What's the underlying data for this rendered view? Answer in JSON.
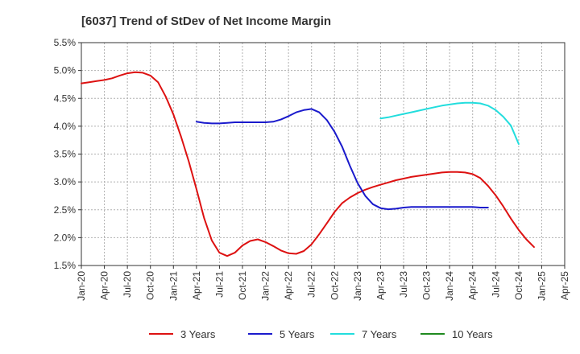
{
  "chart_data": {
    "type": "line",
    "title": "[6037]  Trend of StDev of Net Income Margin",
    "xlabel": "",
    "ylabel": "",
    "x_ticks": [
      "Jan-20",
      "Apr-20",
      "Jul-20",
      "Oct-20",
      "Jan-21",
      "Apr-21",
      "Jul-21",
      "Oct-21",
      "Jan-22",
      "Apr-22",
      "Jul-22",
      "Oct-22",
      "Jan-23",
      "Apr-23",
      "Jul-23",
      "Oct-23",
      "Jan-24",
      "Apr-24",
      "Jul-24",
      "Oct-24",
      "Jan-25",
      "Apr-25"
    ],
    "y_ticks": [
      "5.5%",
      "5.0%",
      "4.5%",
      "4.0%",
      "3.5%",
      "3.0%",
      "2.5%",
      "2.0%",
      "1.5%"
    ],
    "ylim": [
      1.5,
      5.5
    ],
    "grid": true,
    "legend_position": "bottom",
    "series": [
      {
        "name": "3 Years",
        "color": "#dd1111",
        "start_index": 0,
        "values": [
          4.77,
          4.79,
          4.81,
          4.83,
          4.86,
          4.91,
          4.95,
          4.97,
          4.96,
          4.91,
          4.79,
          4.53,
          4.21,
          3.81,
          3.37,
          2.87,
          2.35,
          1.95,
          1.73,
          1.67,
          1.73,
          1.86,
          1.94,
          1.97,
          1.92,
          1.85,
          1.77,
          1.72,
          1.71,
          1.76,
          1.88,
          2.06,
          2.26,
          2.46,
          2.62,
          2.72,
          2.8,
          2.86,
          2.91,
          2.95,
          2.99,
          3.03,
          3.06,
          3.09,
          3.11,
          3.13,
          3.15,
          3.17,
          3.18,
          3.18,
          3.17,
          3.14,
          3.07,
          2.93,
          2.76,
          2.56,
          2.34,
          2.14,
          1.97,
          1.83
        ]
      },
      {
        "name": "5 Years",
        "color": "#1a1acc",
        "start_index": 15,
        "values": [
          4.08,
          4.06,
          4.05,
          4.05,
          4.06,
          4.07,
          4.07,
          4.07,
          4.07,
          4.07,
          4.08,
          4.12,
          4.18,
          4.25,
          4.29,
          4.31,
          4.25,
          4.11,
          3.9,
          3.63,
          3.29,
          2.98,
          2.75,
          2.6,
          2.53,
          2.51,
          2.52,
          2.54,
          2.55,
          2.55,
          2.55,
          2.55,
          2.55,
          2.55,
          2.55,
          2.55,
          2.55,
          2.54,
          2.54
        ]
      },
      {
        "name": "7 Years",
        "color": "#22dddd",
        "start_index": 39,
        "values": [
          4.14,
          4.16,
          4.19,
          4.22,
          4.25,
          4.28,
          4.31,
          4.34,
          4.37,
          4.39,
          4.41,
          4.42,
          4.42,
          4.41,
          4.37,
          4.29,
          4.17,
          4.01,
          3.68
        ]
      },
      {
        "name": "10 Years",
        "color": "#1f8a1f",
        "start_index": 0,
        "values": []
      }
    ]
  }
}
